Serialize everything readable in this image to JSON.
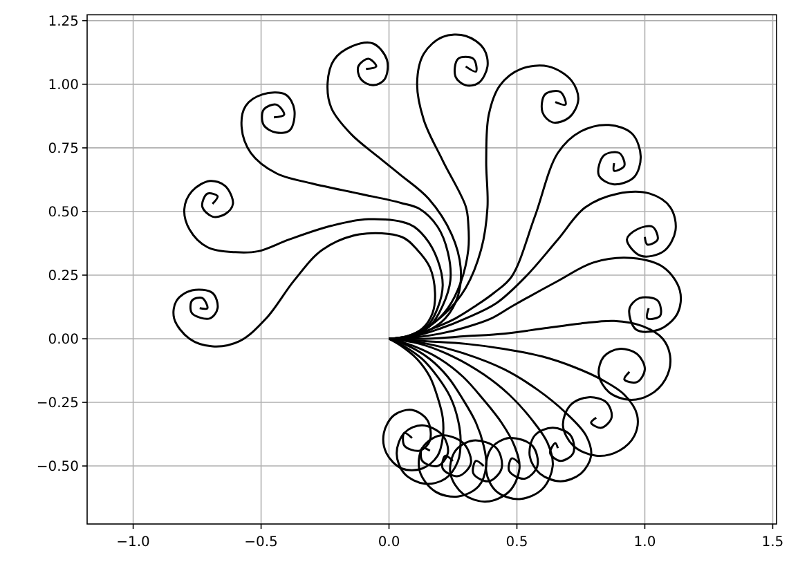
{
  "chart_data": {
    "type": "line",
    "grid": true,
    "xlim": [
      -1.18,
      1.515
    ],
    "ylim": [
      -0.728,
      1.273
    ],
    "xticks": [
      {
        "value": -1,
        "label": "−1.0"
      },
      {
        "value": -0.5,
        "label": "−0.5"
      },
      {
        "value": 0,
        "label": "0.0"
      },
      {
        "value": 0.5,
        "label": "0.5"
      },
      {
        "value": 1,
        "label": "1.0"
      },
      {
        "value": 1.5,
        "label": "1.5"
      }
    ],
    "yticks": [
      {
        "value": -0.5,
        "label": "−0.50"
      },
      {
        "value": -0.25,
        "label": "−0.25"
      },
      {
        "value": 0,
        "label": "0.00"
      },
      {
        "value": 0.25,
        "label": "0.25"
      },
      {
        "value": 0.5,
        "label": "0.50"
      },
      {
        "value": 0.75,
        "label": "0.75"
      },
      {
        "value": 1,
        "label": "1.00"
      },
      {
        "value": 1.25,
        "label": "1.25"
      }
    ],
    "series": [
      {
        "color": "#000000",
        "x": [
          0,
          0.07,
          0.13,
          0.17,
          0.18,
          0.16,
          0.11,
          0.05,
          -0.116,
          -0.26,
          -0.37,
          -0.48,
          -0.585,
          -0.69,
          -0.78,
          -0.84,
          -0.83,
          -0.77,
          -0.69,
          -0.67,
          -0.7,
          -0.77,
          -0.77,
          -0.73,
          -0.71,
          -0.74
        ],
        "values": [
          0,
          0.01,
          0.04,
          0.1,
          0.18,
          0.28,
          0.35,
          0.4,
          0.41,
          0.35,
          0.23,
          0.08,
          -0.01,
          -0.03,
          0.0,
          0.08,
          0.15,
          0.19,
          0.18,
          0.12,
          0.08,
          0.1,
          0.15,
          0.16,
          0.12,
          0.12
        ]
      },
      {
        "color": "#000000",
        "x": [
          0,
          0.08,
          0.15,
          0.19,
          0.21,
          0.19,
          0.14,
          0.08,
          -0.08,
          -0.225,
          -0.39,
          -0.51,
          -0.6,
          -0.71,
          -0.78,
          -0.8,
          -0.77,
          -0.7,
          -0.64,
          -0.61,
          -0.64,
          -0.69,
          -0.73,
          -0.71,
          -0.67,
          -0.69
        ],
        "values": [
          0,
          0.01,
          0.05,
          0.12,
          0.21,
          0.31,
          0.4,
          0.45,
          0.47,
          0.444,
          0.39,
          0.344,
          0.34,
          0.36,
          0.43,
          0.51,
          0.58,
          0.62,
          0.6,
          0.53,
          0.49,
          0.48,
          0.52,
          0.57,
          0.56,
          0.53
        ]
      },
      {
        "color": "#000000",
        "x": [
          0,
          0.09,
          0.16,
          0.21,
          0.24,
          0.23,
          0.19,
          0.12,
          0.046,
          -0.116,
          -0.3,
          -0.44,
          -0.54,
          -0.576,
          -0.56,
          -0.495,
          -0.405,
          -0.37,
          -0.387,
          -0.44,
          -0.49,
          -0.49,
          -0.44,
          -0.41,
          -0.45
        ],
        "values": [
          0,
          0.01,
          0.05,
          0.13,
          0.23,
          0.34,
          0.44,
          0.51,
          0.534,
          0.57,
          0.61,
          0.65,
          0.73,
          0.83,
          0.915,
          0.96,
          0.96,
          0.9,
          0.82,
          0.81,
          0.84,
          0.9,
          0.92,
          0.88,
          0.87
        ]
      },
      {
        "color": "#000000",
        "x": [
          0,
          0.07,
          0.14,
          0.22,
          0.27,
          0.28,
          0.245,
          0.155,
          0.046,
          -0.044,
          -0.15,
          -0.225,
          -0.24,
          -0.215,
          -0.143,
          -0.062,
          -0.008,
          -0.017,
          -0.062,
          -0.11,
          -0.12,
          -0.08,
          -0.05,
          -0.09
        ],
        "values": [
          0,
          0.005,
          0.025,
          0.08,
          0.17,
          0.28,
          0.41,
          0.55,
          0.643,
          0.716,
          0.806,
          0.906,
          1.005,
          1.096,
          1.15,
          1.16,
          1.096,
          1.02,
          0.996,
          1.02,
          1.07,
          1.1,
          1.07,
          1.06
        ]
      },
      {
        "color": "#000000",
        "x": [
          0,
          0.08,
          0.16,
          0.23,
          0.28,
          0.31,
          0.31,
          0.3,
          0.21,
          0.136,
          0.11,
          0.136,
          0.21,
          0.3,
          0.37,
          0.385,
          0.35,
          0.3,
          0.26,
          0.27,
          0.33,
          0.34,
          0.3
        ],
        "values": [
          0,
          0.01,
          0.05,
          0.12,
          0.22,
          0.35,
          0.45,
          0.52,
          0.7,
          0.86,
          1.005,
          1.12,
          1.186,
          1.19,
          1.14,
          1.07,
          1.005,
          0.996,
          1.03,
          1.1,
          1.1,
          1.05,
          1.07
        ]
      },
      {
        "color": "#000000",
        "x": [
          0,
          0.07,
          0.14,
          0.22,
          0.3,
          0.36,
          0.385,
          0.38,
          0.39,
          0.434,
          0.515,
          0.623,
          0.713,
          0.74,
          0.705,
          0.64,
          0.6,
          0.61,
          0.67,
          0.69,
          0.65
        ],
        "values": [
          0,
          0.01,
          0.04,
          0.1,
          0.2,
          0.35,
          0.516,
          0.7,
          0.88,
          0.996,
          1.06,
          1.07,
          1.015,
          0.94,
          0.87,
          0.85,
          0.89,
          0.96,
          0.97,
          0.92,
          0.93
        ]
      },
      {
        "color": "#000000",
        "x": [
          0,
          0.08,
          0.17,
          0.26,
          0.34,
          0.41,
          0.48,
          0.57,
          0.66,
          0.75,
          0.86,
          0.95,
          0.984,
          0.957,
          0.876,
          0.82,
          0.84,
          0.9,
          0.92,
          0.88,
          0.88
        ],
        "values": [
          0,
          0.01,
          0.04,
          0.08,
          0.13,
          0.18,
          0.245,
          0.48,
          0.73,
          0.815,
          0.84,
          0.806,
          0.716,
          0.634,
          0.607,
          0.643,
          0.72,
          0.73,
          0.68,
          0.66,
          0.69
        ]
      },
      {
        "color": "#000000",
        "x": [
          0,
          0.1,
          0.2,
          0.3,
          0.42,
          0.54,
          0.66,
          0.767,
          0.894,
          1.02,
          1.1,
          1.12,
          1.074,
          0.984,
          0.93,
          0.97,
          1.03,
          1.05,
          1.01,
          1.0
        ],
        "values": [
          0,
          0.01,
          0.04,
          0.08,
          0.14,
          0.25,
          0.39,
          0.516,
          0.57,
          0.57,
          0.516,
          0.426,
          0.344,
          0.326,
          0.39,
          0.43,
          0.44,
          0.39,
          0.37,
          0.4
        ]
      },
      {
        "color": "#000000",
        "x": [
          0,
          0.1,
          0.2,
          0.3,
          0.4,
          0.48,
          0.66,
          0.8,
          0.95,
          1.074,
          1.137,
          1.128,
          1.056,
          0.966,
          0.94,
          0.98,
          1.05,
          1.06,
          1.01,
          1.015
        ],
        "values": [
          0,
          0.005,
          0.02,
          0.045,
          0.08,
          0.127,
          0.227,
          0.3,
          0.317,
          0.28,
          0.19,
          0.1,
          0.036,
          0.036,
          0.118,
          0.16,
          0.15,
          0.09,
          0.08,
          0.12
        ]
      },
      {
        "color": "#000000",
        "x": [
          0,
          0.15,
          0.3,
          0.45,
          0.6,
          0.75,
          0.88,
          0.99,
          1.07,
          1.1,
          1.08,
          1.02,
          0.94,
          0.86,
          0.82,
          0.84,
          0.9,
          0.97,
          1.0,
          0.97,
          0.92,
          0.94
        ],
        "values": [
          0,
          0.0,
          0.01,
          0.02,
          0.04,
          0.06,
          0.07,
          0.05,
          0.0,
          -0.08,
          -0.16,
          -0.22,
          -0.24,
          -0.21,
          -0.14,
          -0.07,
          -0.04,
          -0.06,
          -0.12,
          -0.17,
          -0.16,
          -0.13
        ]
      },
      {
        "color": "#000000",
        "x": [
          0,
          0.15,
          0.3,
          0.45,
          0.6,
          0.72,
          0.83,
          0.92,
          0.97,
          0.96,
          0.9,
          0.81,
          0.72,
          0.68,
          0.71,
          0.78,
          0.85,
          0.87,
          0.83,
          0.79,
          0.81
        ],
        "values": [
          0,
          -0.01,
          -0.02,
          -0.04,
          -0.07,
          -0.11,
          -0.16,
          -0.22,
          -0.3,
          -0.38,
          -0.44,
          -0.46,
          -0.42,
          -0.34,
          -0.26,
          -0.23,
          -0.25,
          -0.31,
          -0.35,
          -0.33,
          -0.31
        ]
      },
      {
        "color": "#000000",
        "x": [
          0,
          0.15,
          0.3,
          0.45,
          0.58,
          0.69,
          0.77,
          0.79,
          0.75,
          0.67,
          0.59,
          0.55,
          0.57,
          0.64,
          0.71,
          0.72,
          0.67,
          0.63,
          0.65,
          0.66
        ],
        "values": [
          0,
          -0.02,
          -0.06,
          -0.12,
          -0.2,
          -0.29,
          -0.38,
          -0.46,
          -0.53,
          -0.56,
          -0.53,
          -0.46,
          -0.38,
          -0.35,
          -0.38,
          -0.45,
          -0.48,
          -0.45,
          -0.41,
          -0.43
        ]
      },
      {
        "color": "#000000",
        "x": [
          0,
          0.12,
          0.25,
          0.37,
          0.47,
          0.56,
          0.62,
          0.64,
          0.6,
          0.51,
          0.42,
          0.38,
          0.4,
          0.47,
          0.56,
          0.58,
          0.53,
          0.47,
          0.48,
          0.51
        ],
        "values": [
          0,
          -0.02,
          -0.07,
          -0.14,
          -0.22,
          -0.32,
          -0.41,
          -0.5,
          -0.59,
          -0.63,
          -0.6,
          -0.52,
          -0.43,
          -0.39,
          -0.42,
          -0.5,
          -0.55,
          -0.52,
          -0.47,
          -0.49
        ]
      },
      {
        "color": "#000000",
        "x": [
          0,
          0.1,
          0.2,
          0.29,
          0.37,
          0.44,
          0.49,
          0.51,
          0.47,
          0.38,
          0.29,
          0.24,
          0.26,
          0.33,
          0.42,
          0.44,
          0.39,
          0.33,
          0.34,
          0.37
        ],
        "values": [
          0,
          -0.03,
          -0.08,
          -0.15,
          -0.24,
          -0.33,
          -0.42,
          -0.51,
          -0.6,
          -0.64,
          -0.61,
          -0.53,
          -0.44,
          -0.4,
          -0.43,
          -0.51,
          -0.56,
          -0.53,
          -0.48,
          -0.5
        ]
      },
      {
        "color": "#000000",
        "x": [
          0,
          0.08,
          0.16,
          0.23,
          0.29,
          0.34,
          0.37,
          0.38,
          0.35,
          0.27,
          0.18,
          0.12,
          0.13,
          0.2,
          0.29,
          0.32,
          0.27,
          0.21,
          0.22,
          0.25
        ],
        "values": [
          0,
          -0.03,
          -0.08,
          -0.15,
          -0.24,
          -0.33,
          -0.42,
          -0.5,
          -0.58,
          -0.62,
          -0.6,
          -0.52,
          -0.43,
          -0.38,
          -0.41,
          -0.49,
          -0.54,
          -0.51,
          -0.46,
          -0.48
        ]
      },
      {
        "color": "#000000",
        "x": [
          0,
          0.06,
          0.13,
          0.19,
          0.24,
          0.27,
          0.28,
          0.27,
          0.22,
          0.14,
          0.06,
          0.03,
          0.06,
          0.13,
          0.21,
          0.23,
          0.19,
          0.13,
          0.13,
          0.16
        ],
        "values": [
          0,
          -0.03,
          -0.08,
          -0.15,
          -0.23,
          -0.32,
          -0.4,
          -0.48,
          -0.55,
          -0.57,
          -0.53,
          -0.45,
          -0.37,
          -0.34,
          -0.38,
          -0.45,
          -0.5,
          -0.48,
          -0.43,
          -0.44
        ]
      },
      {
        "color": "#000000",
        "x": [
          0,
          0.05,
          0.11,
          0.16,
          0.19,
          0.21,
          0.21,
          0.19,
          0.13,
          0.05,
          -0.01,
          -0.02,
          0.02,
          0.09,
          0.15,
          0.16,
          0.12,
          0.06,
          0.06,
          0.09
        ],
        "values": [
          0,
          -0.03,
          -0.08,
          -0.15,
          -0.23,
          -0.31,
          -0.39,
          -0.46,
          -0.51,
          -0.51,
          -0.45,
          -0.37,
          -0.3,
          -0.28,
          -0.32,
          -0.4,
          -0.44,
          -0.42,
          -0.37,
          -0.39
        ]
      }
    ]
  }
}
